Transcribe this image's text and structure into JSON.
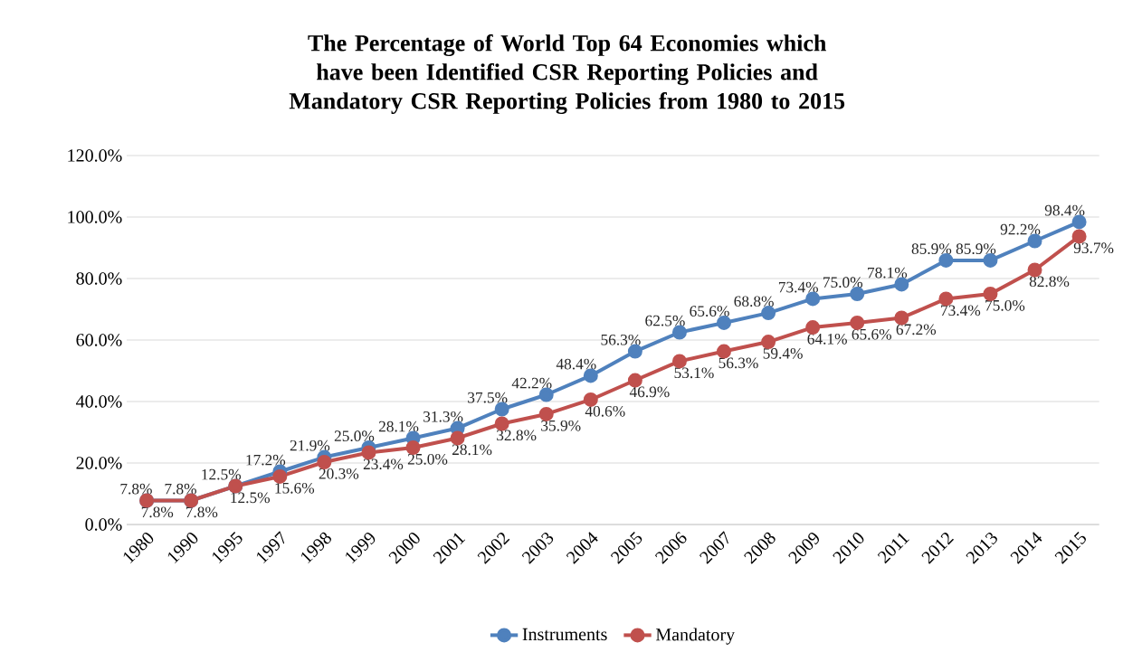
{
  "chart_data": {
    "type": "line",
    "title": "The Percentage of World Top 64 Economies which have been Identified CSR Reporting Policies and Mandatory CSR Reporting Policies from 1980 to 2015",
    "categories": [
      "1980",
      "1990",
      "1995",
      "1997",
      "1998",
      "1999",
      "2000",
      "2001",
      "2002",
      "2003",
      "2004",
      "2005",
      "2006",
      "2007",
      "2008",
      "2009",
      "2010",
      "2011",
      "2012",
      "2013",
      "2014",
      "2015"
    ],
    "series": [
      {
        "name": "Instruments",
        "color": "#4f81bd",
        "values": [
          7.8,
          7.8,
          12.5,
          17.2,
          21.9,
          25.0,
          28.1,
          31.3,
          37.5,
          42.2,
          48.4,
          56.3,
          62.5,
          65.6,
          68.8,
          73.4,
          75.0,
          78.1,
          85.9,
          85.9,
          92.2,
          98.4
        ],
        "value_labels": [
          "7.8%",
          "7.8%",
          "12.5%",
          "17.2%",
          "21.9%",
          "25.0%",
          "28.1%",
          "31.3%",
          "37.5%",
          "42.2%",
          "48.4%",
          "56.3%",
          "62.5%",
          "65.6%",
          "68.8%",
          "73.4%",
          "75.0%",
          "78.1%",
          "85.9%",
          "85.9%",
          "92.2%",
          "98.4%"
        ]
      },
      {
        "name": "Mandatory",
        "color": "#c0504d",
        "values": [
          7.8,
          7.8,
          12.5,
          15.6,
          20.3,
          23.4,
          25.0,
          28.1,
          32.8,
          35.9,
          40.6,
          46.9,
          53.1,
          56.3,
          59.4,
          64.1,
          65.6,
          67.2,
          73.4,
          75.0,
          82.8,
          93.7
        ],
        "value_labels": [
          "7.8%",
          "7.8%",
          "12.5%",
          "15.6%",
          "20.3%",
          "23.4%",
          "25.0%",
          "28.1%",
          "32.8%",
          "35.9%",
          "40.6%",
          "46.9%",
          "53.1%",
          "56.3%",
          "59.4%",
          "64.1%",
          "65.6%",
          "67.2%",
          "73.4%",
          "75.0%",
          "82.8%",
          "93.7%"
        ]
      }
    ],
    "ylim": [
      0,
      120
    ],
    "yticks": [
      {
        "value": 0,
        "label": "0.0%"
      },
      {
        "value": 20,
        "label": "20.0%"
      },
      {
        "value": 40,
        "label": "40.0%"
      },
      {
        "value": 60,
        "label": "60.0%"
      },
      {
        "value": 80,
        "label": "80.0%"
      },
      {
        "value": 100,
        "label": "100.0%"
      },
      {
        "value": 120,
        "label": "120.0%"
      }
    ],
    "grid": "y",
    "legend": "bottom",
    "marker": "circle",
    "line_style": "solid"
  }
}
